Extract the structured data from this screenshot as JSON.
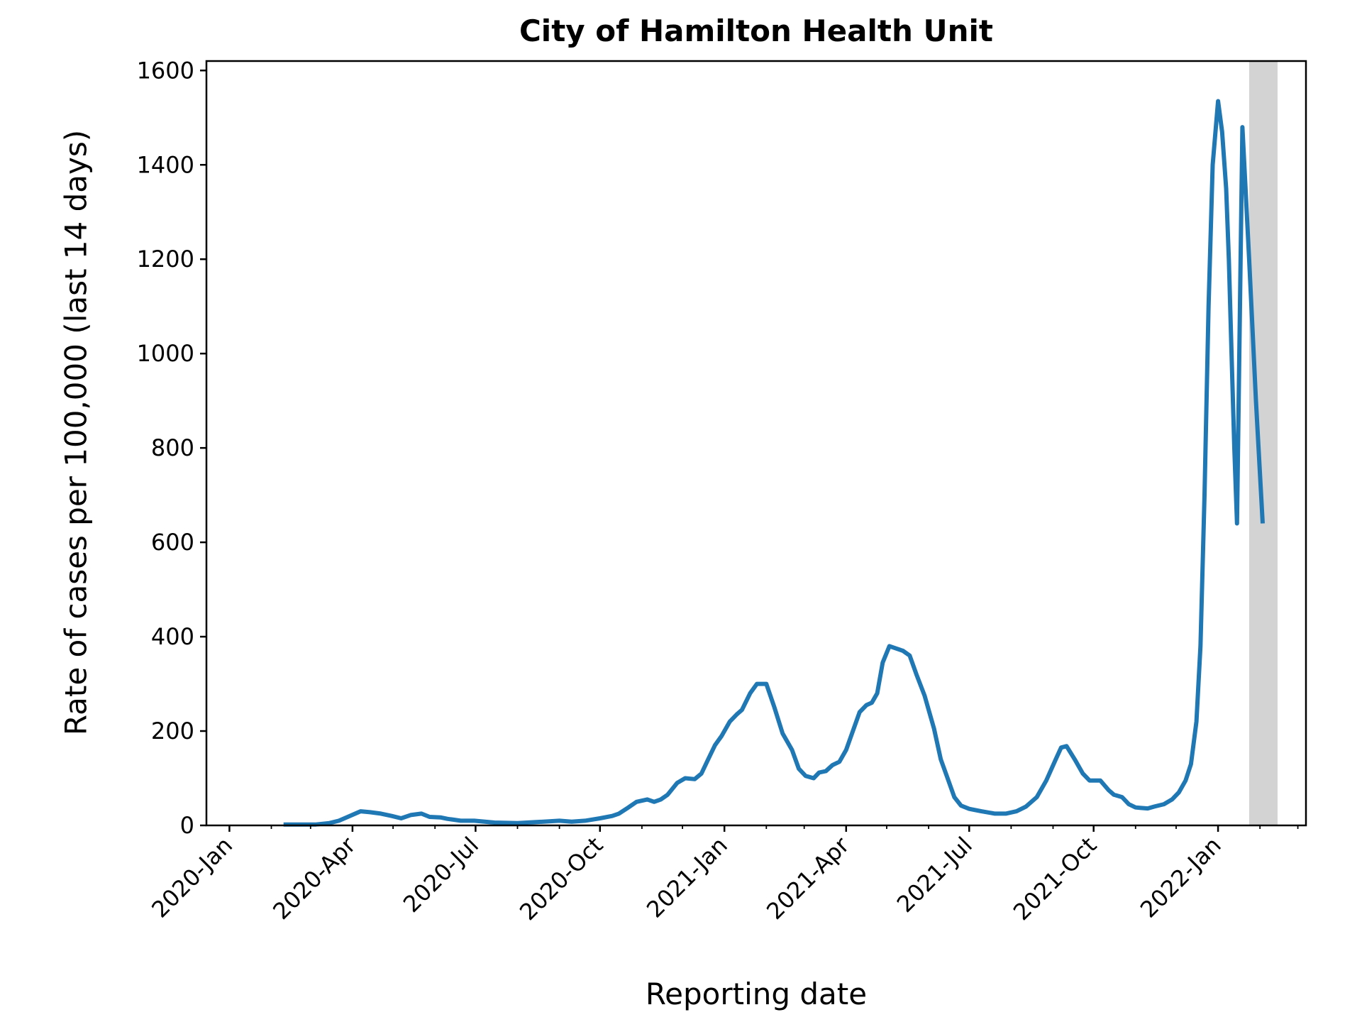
{
  "chart_data": {
    "type": "line",
    "title": "City of Hamilton Health Unit",
    "xlabel": "Reporting date",
    "ylabel": "Rate of cases per 100,000 (last 14 days)",
    "x_tick_dates": [
      "2020-01-01",
      "2020-04-01",
      "2020-07-01",
      "2020-10-01",
      "2021-01-01",
      "2021-04-01",
      "2021-07-01",
      "2021-10-01",
      "2022-01-01"
    ],
    "x_tick_labels": [
      "2020-Jan",
      "2020-Apr",
      "2020-Jul",
      "2020-Oct",
      "2021-Jan",
      "2021-Apr",
      "2021-Jul",
      "2021-Oct",
      "2022-Jan"
    ],
    "xlim": [
      "2019-12-15",
      "2022-03-07"
    ],
    "ylim": [
      0,
      1620
    ],
    "y_ticks": [
      0,
      200,
      400,
      600,
      800,
      1000,
      1200,
      1400,
      1600
    ],
    "y_tick_labels": [
      "0",
      "200",
      "400",
      "600",
      "800",
      "1000",
      "1200",
      "1400",
      "1600"
    ],
    "grid": false,
    "shaded_region": {
      "from": "2022-01-24",
      "to": "2022-02-14",
      "color": "#d3d3d3"
    },
    "series_color": "#1f77b4",
    "x": [
      "2020-02-10",
      "2020-02-25",
      "2020-03-05",
      "2020-03-15",
      "2020-03-22",
      "2020-03-30",
      "2020-04-07",
      "2020-04-14",
      "2020-04-22",
      "2020-04-30",
      "2020-05-07",
      "2020-05-14",
      "2020-05-22",
      "2020-05-28",
      "2020-06-05",
      "2020-06-10",
      "2020-06-15",
      "2020-06-20",
      "2020-06-30",
      "2020-07-15",
      "2020-08-01",
      "2020-08-15",
      "2020-09-01",
      "2020-09-10",
      "2020-09-20",
      "2020-10-01",
      "2020-10-10",
      "2020-10-15",
      "2020-10-22",
      "2020-10-28",
      "2020-11-05",
      "2020-11-10",
      "2020-11-15",
      "2020-11-20",
      "2020-11-27",
      "2020-12-03",
      "2020-12-10",
      "2020-12-15",
      "2020-12-20",
      "2020-12-25",
      "2020-12-30",
      "2021-01-05",
      "2021-01-10",
      "2021-01-14",
      "2021-01-20",
      "2021-01-25",
      "2021-02-01",
      "2021-02-07",
      "2021-02-13",
      "2021-02-20",
      "2021-02-25",
      "2021-03-02",
      "2021-03-08",
      "2021-03-12",
      "2021-03-17",
      "2021-03-22",
      "2021-03-27",
      "2021-04-01",
      "2021-04-06",
      "2021-04-11",
      "2021-04-16",
      "2021-04-20",
      "2021-04-24",
      "2021-04-28",
      "2021-05-03",
      "2021-05-08",
      "2021-05-13",
      "2021-05-18",
      "2021-05-23",
      "2021-05-29",
      "2021-06-05",
      "2021-06-10",
      "2021-06-15",
      "2021-06-20",
      "2021-06-25",
      "2021-07-01",
      "2021-07-10",
      "2021-07-20",
      "2021-07-28",
      "2021-08-05",
      "2021-08-12",
      "2021-08-20",
      "2021-08-27",
      "2021-09-03",
      "2021-09-07",
      "2021-09-11",
      "2021-09-17",
      "2021-09-23",
      "2021-09-28",
      "2021-10-02",
      "2021-10-06",
      "2021-10-12",
      "2021-10-16",
      "2021-10-22",
      "2021-10-27",
      "2021-11-01",
      "2021-11-05",
      "2021-11-10",
      "2021-11-15",
      "2021-11-22",
      "2021-11-28",
      "2021-12-03",
      "2021-12-08",
      "2021-12-12",
      "2021-12-16",
      "2021-12-19",
      "2021-12-22",
      "2021-12-25",
      "2021-12-28",
      "2022-01-01",
      "2022-01-04",
      "2022-01-07",
      "2022-01-09",
      "2022-01-11",
      "2022-01-13",
      "2022-01-15",
      "2022-01-19",
      "2022-01-24",
      "2022-01-29",
      "2022-02-03"
    ],
    "y": [
      2,
      2,
      2,
      5,
      10,
      20,
      30,
      28,
      25,
      20,
      15,
      22,
      25,
      18,
      17,
      14,
      12,
      10,
      10,
      6,
      5,
      7,
      10,
      8,
      10,
      15,
      20,
      25,
      38,
      50,
      55,
      50,
      55,
      65,
      90,
      100,
      98,
      110,
      140,
      170,
      190,
      220,
      235,
      245,
      280,
      300,
      300,
      250,
      195,
      160,
      120,
      105,
      100,
      112,
      115,
      128,
      135,
      160,
      200,
      240,
      255,
      260,
      280,
      345,
      380,
      375,
      370,
      360,
      320,
      275,
      205,
      140,
      100,
      60,
      42,
      35,
      30,
      25,
      25,
      30,
      40,
      60,
      95,
      140,
      165,
      168,
      140,
      110,
      95,
      95,
      95,
      75,
      65,
      60,
      45,
      38,
      37,
      36,
      40,
      45,
      55,
      70,
      95,
      130,
      220,
      380,
      700,
      1100,
      1400,
      1535,
      1470,
      1350,
      1200,
      1000,
      800,
      640,
      1480,
      1200,
      900,
      640
    ]
  }
}
